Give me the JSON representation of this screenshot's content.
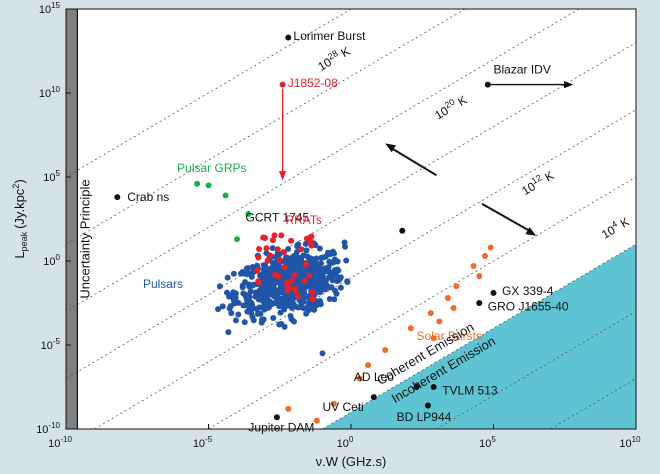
{
  "chart_data": {
    "type": "scatter",
    "xlabel": "ν.W (GHz.s)",
    "ylabel": "L",
    "ylabel_sub": "peak",
    "ylabel_units": "(Jy.kpc",
    "ylabel_units_close": ")",
    "xscale": "log",
    "yscale": "log",
    "xlim_exp": [
      -10,
      10
    ],
    "ylim_exp": [
      -10,
      15
    ],
    "x_ticks": [
      {
        "exp": -10,
        "label": "10",
        "sup": "-10"
      },
      {
        "exp": -5,
        "label": "10",
        "sup": "-5"
      },
      {
        "exp": 0,
        "label": "10",
        "sup": "0"
      },
      {
        "exp": 5,
        "label": "10",
        "sup": "5"
      },
      {
        "exp": 10,
        "label": "10",
        "sup": "10"
      }
    ],
    "y_ticks": [
      {
        "exp": -10,
        "label": "10",
        "sup": "-10"
      },
      {
        "exp": -5,
        "label": "10",
        "sup": "-5"
      },
      {
        "exp": 0,
        "label": "10",
        "sup": "0"
      },
      {
        "exp": 5,
        "label": "10",
        "sup": "5"
      },
      {
        "exp": 10,
        "label": "10",
        "sup": "10"
      },
      {
        "exp": 15,
        "label": "10",
        "sup": "15"
      }
    ],
    "colors": {
      "bg": "#d6e2ea",
      "incoherent": "#5ec4d3",
      "black": "#111111",
      "pulsar": "#2155a8",
      "rrat": "#e8202a",
      "grp": "#19b04a",
      "solar": "#f06a2a",
      "grey": "#808080"
    },
    "uncertainty_label": "Uncertainty Principle",
    "coherent_label": "Coherent Emission",
    "incoherent_label": "Incoherent Emission",
    "temperature_lines": [
      {
        "exp": 28,
        "text": "10",
        "sup": "28",
        "unit": "K",
        "lx": -1.05,
        "ly": 11.3
      },
      {
        "exp": 20,
        "text": "10",
        "sup": "20",
        "unit": "K",
        "lx": 3.05,
        "ly": 8.4
      },
      {
        "exp": 12,
        "text": "10",
        "sup": "12",
        "unit": "K",
        "lx": 6.1,
        "ly": 3.9
      },
      {
        "exp": 4,
        "text": "10",
        "sup": "4",
        "unit": "K",
        "lx": 8.9,
        "ly": 1.3
      }
    ],
    "extra_dotted_intercepts": [
      36,
      32,
      24,
      16,
      8,
      0
    ],
    "named_sources": [
      {
        "name": "Lorimer Burst",
        "x": -2.2,
        "y": 13.3,
        "color": "black",
        "lx": 0.18,
        "ly": 0.1
      },
      {
        "name": "J1852-08",
        "x": -2.4,
        "y": 10.5,
        "color": "rrat",
        "lx": 0.18,
        "ly": 0.1
      },
      {
        "name": "Blazar IDV",
        "x": 4.8,
        "y": 10.5,
        "color": "black",
        "lx": 0.2,
        "ly": 0.9
      },
      {
        "name": "Crab ns",
        "x": -8.2,
        "y": 3.8,
        "color": "black",
        "lx": 0.35,
        "ly": 0.0
      },
      {
        "name": "GCRT 1745",
        "x": 1.8,
        "y": 1.8,
        "color": "black",
        "lx": -5.5,
        "ly": 0.8
      },
      {
        "name": "GX 339-4",
        "x": 5.0,
        "y": -1.9,
        "color": "black",
        "lx": 0.3,
        "ly": 0.1
      },
      {
        "name": "GRO J1655-40",
        "x": 4.5,
        "y": -2.5,
        "color": "black",
        "lx": 0.3,
        "ly": -0.2
      },
      {
        "name": "AD Leo",
        "x": 2.3,
        "y": -7.5,
        "color": "black",
        "lx": -2.2,
        "ly": 0.6
      },
      {
        "name": "TVLM 513",
        "x": 2.9,
        "y": -7.5,
        "color": "black",
        "lx": 0.3,
        "ly": -0.2
      },
      {
        "name": "UV Ceti",
        "x": 0.8,
        "y": -8.1,
        "color": "black",
        "lx": -1.8,
        "ly": -0.6
      },
      {
        "name": "BD LP944",
        "x": 2.7,
        "y": -8.6,
        "color": "black",
        "lx": -1.1,
        "ly": -0.7
      },
      {
        "name": "Jupiter DAM",
        "x": -2.6,
        "y": -9.3,
        "color": "black",
        "lx": -1.0,
        "ly": -0.6
      }
    ],
    "group_labels": [
      {
        "name": "Pulsar GRPs",
        "color": "grp",
        "x": -6.1,
        "y": 5.3
      },
      {
        "name": "RRATs",
        "color": "rrat",
        "x": -2.3,
        "y": 2.2
      },
      {
        "name": "Pulsars",
        "color": "pulsar",
        "x": -7.3,
        "y": -1.6
      },
      {
        "name": "Solar Bursts",
        "color": "solar",
        "x": 2.3,
        "y": -4.7
      }
    ],
    "pulsar_grp_points": [
      [
        -5.4,
        4.6
      ],
      [
        -5.0,
        4.5
      ],
      [
        -4.4,
        3.9
      ],
      [
        -3.6,
        2.8
      ],
      [
        -4.0,
        1.3
      ]
    ],
    "solar_burst_points": [
      [
        4.9,
        0.8
      ],
      [
        4.7,
        0.3
      ],
      [
        4.3,
        -0.3
      ],
      [
        4.5,
        -0.9
      ],
      [
        3.7,
        -1.5
      ],
      [
        3.4,
        -2.2
      ],
      [
        3.6,
        -2.8
      ],
      [
        2.8,
        -3.1
      ],
      [
        3.1,
        -3.6
      ],
      [
        2.1,
        -4.0
      ],
      [
        2.9,
        -4.6
      ],
      [
        1.2,
        -5.3
      ],
      [
        0.6,
        -6.2
      ],
      [
        0.3,
        -7.0
      ],
      [
        -0.6,
        -8.5
      ],
      [
        -1.2,
        -9.5
      ],
      [
        -2.2,
        -8.8
      ]
    ],
    "pulsar_field": {
      "x_range": [
        -4.8,
        -0.1
      ],
      "y_range": [
        -4.5,
        1.5
      ],
      "count": 650
    },
    "rrat_field": {
      "x_range": [
        -3.3,
        -1.3
      ],
      "y_range": [
        -2.3,
        1.7
      ],
      "count": 40
    },
    "pulsar_extras": [
      [
        -1.0,
        -5.5
      ],
      [
        -2.0,
        -3.6
      ],
      [
        -4.5,
        -2.7
      ],
      [
        -4.6,
        -1.5
      ],
      [
        -4.2,
        -3.1
      ]
    ]
  }
}
